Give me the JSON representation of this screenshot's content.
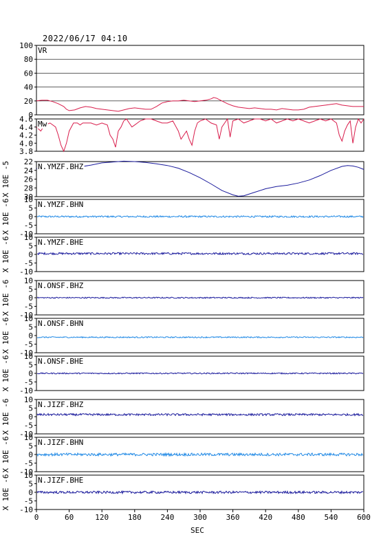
{
  "page": {
    "title": "2022/06/17 04:10",
    "xlabel": "SEC"
  },
  "x_ticks": [
    "0",
    "60",
    "120",
    "180",
    "240",
    "300",
    "360",
    "420",
    "480",
    "540",
    "600"
  ],
  "chart_data": [
    {
      "type": "line",
      "label": "VR",
      "ylim": [
        0,
        100
      ],
      "yticks": [
        "100",
        "80",
        "60",
        "40",
        "20",
        "0"
      ],
      "hgrid": [
        20,
        40,
        60,
        80
      ],
      "color": "#d81b4a",
      "series": [
        {
          "x": [
            0,
            10,
            20,
            30,
            40,
            50,
            55,
            60,
            70,
            80,
            90,
            100,
            110,
            120,
            130,
            140,
            150,
            160,
            170,
            180,
            190,
            200,
            210,
            220,
            230,
            240,
            250,
            260,
            270,
            280,
            290,
            300,
            310,
            320,
            325,
            330,
            340,
            350,
            360,
            370,
            380,
            390,
            400,
            410,
            420,
            430,
            440,
            450,
            460,
            470,
            480,
            490,
            500,
            510,
            520,
            530,
            540,
            550,
            560,
            570,
            580,
            590,
            600
          ],
          "y": [
            20,
            21,
            21,
            19,
            16,
            12,
            8,
            6,
            7,
            10,
            12,
            11,
            9,
            8,
            7,
            6,
            5,
            7,
            9,
            10,
            9,
            8,
            8,
            12,
            17,
            19,
            20,
            20,
            21,
            20,
            19,
            20,
            21,
            23,
            25,
            24,
            20,
            16,
            13,
            11,
            10,
            9,
            10,
            9,
            8,
            8,
            7,
            9,
            8,
            7,
            7,
            8,
            11,
            12,
            13,
            14,
            15,
            16,
            14,
            13,
            12,
            12,
            12
          ]
        }
      ]
    },
    {
      "type": "line",
      "label": "Mw",
      "ylim": [
        3.8,
        4.6
      ],
      "yticks": [
        "4.6",
        "4.4",
        "4.2",
        "4.0",
        "3.8"
      ],
      "color": "#d81b4a",
      "series": [
        {
          "x": [
            0,
            8,
            15,
            25,
            35,
            40,
            45,
            50,
            55,
            60,
            68,
            75,
            80,
            85,
            90,
            100,
            110,
            120,
            130,
            135,
            140,
            145,
            150,
            155,
            160,
            165,
            170,
            175,
            180,
            185,
            190,
            200,
            210,
            220,
            230,
            240,
            250,
            260,
            265,
            270,
            275,
            280,
            285,
            290,
            295,
            300,
            310,
            320,
            330,
            335,
            340,
            345,
            350,
            355,
            360,
            370,
            380,
            390,
            400,
            410,
            420,
            430,
            440,
            450,
            460,
            470,
            480,
            490,
            500,
            510,
            520,
            530,
            540,
            550,
            555,
            560,
            565,
            570,
            575,
            580,
            585,
            590,
            595,
            600
          ],
          "y": [
            4.4,
            4.3,
            4.45,
            4.5,
            4.4,
            4.2,
            3.95,
            3.8,
            4.0,
            4.3,
            4.5,
            4.5,
            4.45,
            4.5,
            4.5,
            4.5,
            4.45,
            4.5,
            4.45,
            4.2,
            4.1,
            3.9,
            4.3,
            4.4,
            4.55,
            4.6,
            4.5,
            4.4,
            4.45,
            4.5,
            4.55,
            4.6,
            4.6,
            4.55,
            4.5,
            4.5,
            4.55,
            4.3,
            4.1,
            4.2,
            4.3,
            4.1,
            3.95,
            4.3,
            4.5,
            4.55,
            4.6,
            4.5,
            4.45,
            4.1,
            4.4,
            4.5,
            4.6,
            4.15,
            4.55,
            4.6,
            4.5,
            4.55,
            4.6,
            4.6,
            4.55,
            4.6,
            4.5,
            4.55,
            4.6,
            4.55,
            4.6,
            4.55,
            4.5,
            4.55,
            4.6,
            4.55,
            4.6,
            4.5,
            4.2,
            4.05,
            4.3,
            4.45,
            4.55,
            4.0,
            4.4,
            4.6,
            4.5,
            4.6
          ]
        }
      ]
    },
    {
      "type": "line",
      "label": "N.YMZF.BHZ",
      "yunit": "X 10E -5",
      "ylim": [
        30,
        22
      ],
      "yticks": [
        "22",
        "24",
        "26",
        "28",
        "30"
      ],
      "color": "#1a1a9c",
      "series": [
        {
          "x": [
            0,
            20,
            40,
            60,
            80,
            100,
            120,
            140,
            160,
            180,
            200,
            220,
            240,
            260,
            280,
            300,
            320,
            340,
            360,
            370,
            380,
            400,
            420,
            440,
            460,
            480,
            500,
            520,
            540,
            560,
            570,
            580,
            590,
            600
          ],
          "y": [
            23.6,
            24.0,
            24.0,
            23.6,
            23.2,
            22.8,
            22.3,
            22.1,
            21.9,
            22.0,
            22.2,
            22.5,
            22.9,
            23.5,
            24.5,
            25.7,
            27.1,
            28.6,
            29.6,
            29.9,
            29.8,
            29.0,
            28.2,
            27.7,
            27.4,
            26.9,
            26.2,
            25.2,
            24.0,
            23.1,
            22.9,
            23.0,
            23.3,
            23.8
          ]
        }
      ]
    },
    {
      "type": "line",
      "label": "N.YMZF.BHN",
      "yunit": "X 10E -6",
      "ylim": [
        -10,
        10
      ],
      "yticks": [
        "10",
        "5",
        "0",
        "-5",
        "-10"
      ],
      "color": "#1e88e5",
      "baseline": 0,
      "amplitude": 0.5
    },
    {
      "type": "line",
      "label": "N.YMZF.BHE",
      "yunit": "X 10E -6",
      "ylim": [
        -10,
        10
      ],
      "yticks": [
        "10",
        "5",
        "0",
        "-5",
        "-10"
      ],
      "color": "#1a1a9c",
      "baseline": 0.5,
      "amplitude": 0.6
    },
    {
      "type": "line",
      "label": "N.ONSF.BHZ",
      "yunit": "X 10E -6",
      "ylim": [
        -10,
        10
      ],
      "yticks": [
        "10",
        "5",
        "0",
        "-5",
        "-10"
      ],
      "color": "#1a1a9c",
      "baseline": 0,
      "amplitude": 0.35
    },
    {
      "type": "line",
      "label": "N.ONSF.BHN",
      "yunit": "X 10E -6",
      "ylim": [
        -10,
        10
      ],
      "yticks": [
        "10",
        "5",
        "0",
        "-5",
        "-10"
      ],
      "color": "#1e88e5",
      "baseline": -1.0,
      "amplitude": 0.35
    },
    {
      "type": "line",
      "label": "N.ONSF.BHE",
      "yunit": "X 10E -6",
      "ylim": [
        -10,
        10
      ],
      "yticks": [
        "10",
        "5",
        "0",
        "-5",
        "-10"
      ],
      "color": "#1a1a9c",
      "baseline": 0,
      "amplitude": 0.35
    },
    {
      "type": "line",
      "label": "N.JIZF.BHZ",
      "yunit": "X 10E -6",
      "ylim": [
        -10,
        10
      ],
      "yticks": [
        "10",
        "5",
        "0",
        "-5",
        "-10"
      ],
      "color": "#1a1a9c",
      "baseline": 1.2,
      "amplitude": 0.6
    },
    {
      "type": "line",
      "label": "N.JIZF.BHN",
      "yunit": "X 10E -6",
      "ylim": [
        -10,
        10
      ],
      "yticks": [
        "10",
        "5",
        "0",
        "-5",
        "-10"
      ],
      "color": "#1e88e5",
      "baseline": 0,
      "amplitude": 0.8
    },
    {
      "type": "line",
      "label": "N.JIZF.BHE",
      "yunit": "X 10E -6",
      "ylim": [
        -10,
        10
      ],
      "yticks": [
        "10",
        "5",
        "0",
        "-5",
        "-10"
      ],
      "color": "#1a1a9c",
      "baseline": 0,
      "amplitude": 0.7
    }
  ]
}
